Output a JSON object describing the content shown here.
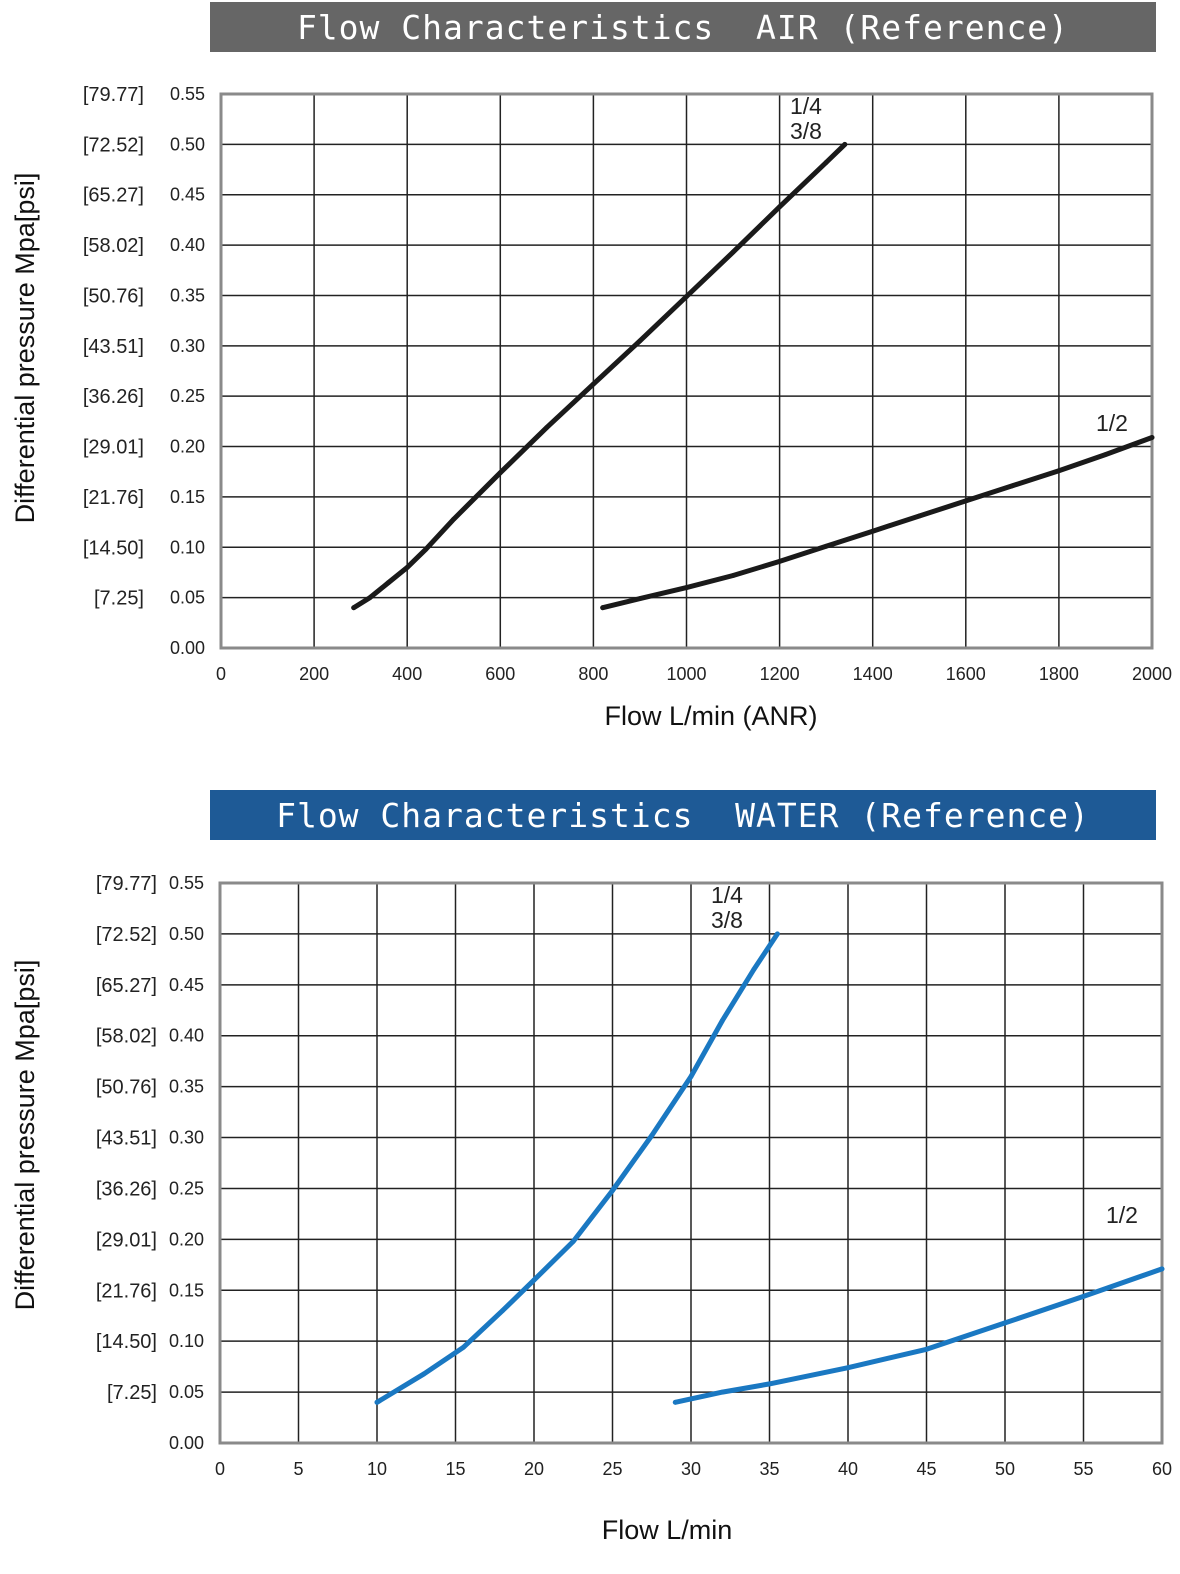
{
  "colors": {
    "air_title_bg": "#666666",
    "water_title_bg": "#1e5a96",
    "air_curve": "#1a1a1a",
    "water_curve": "#1a78c2",
    "grid": "#222222",
    "frame": "#8a8a8a"
  },
  "chart_data": [
    {
      "type": "line",
      "title": "Flow Characteristics  AIR (Reference)",
      "xlabel": "Flow L/min (ANR)",
      "ylabel": "Differential pressure Mpa[psi]",
      "xlim": [
        0,
        2000
      ],
      "ylim": [
        0,
        0.55
      ],
      "x_ticks": [
        "0",
        "200",
        "400",
        "600",
        "800",
        "1000",
        "1200",
        "1400",
        "1600",
        "1800",
        "2000"
      ],
      "y_ticks": [
        "0.00",
        "0.05",
        "0.10",
        "0.15",
        "0.20",
        "0.25",
        "0.30",
        "0.35",
        "0.40",
        "0.45",
        "0.50",
        "0.55"
      ],
      "y_ticks_psi": [
        "[7.25]",
        "[14.50]",
        "[21.76]",
        "[29.01]",
        "[36.26]",
        "[43.51]",
        "[50.76]",
        "[58.02]",
        "[65.27]",
        "[72.52]",
        "[79.77]"
      ],
      "grid": true,
      "series": [
        {
          "name": "1/4 3/8",
          "label_lines": [
            "1/4",
            "3/8"
          ],
          "x": [
            285,
            320,
            360,
            400,
            440,
            500,
            600,
            700,
            800,
            900,
            1000,
            1100,
            1200,
            1300,
            1340
          ],
          "y": [
            0.04,
            0.05,
            0.065,
            0.08,
            0.098,
            0.128,
            0.174,
            0.219,
            0.262,
            0.305,
            0.349,
            0.393,
            0.438,
            0.482,
            0.5
          ]
        },
        {
          "name": "1/2",
          "label_lines": [
            "1/2"
          ],
          "x": [
            820,
            900,
            1000,
            1100,
            1200,
            1300,
            1400,
            1500,
            1600,
            1700,
            1800,
            1900,
            2000
          ],
          "y": [
            0.04,
            0.049,
            0.06,
            0.072,
            0.086,
            0.101,
            0.116,
            0.131,
            0.146,
            0.161,
            0.176,
            0.192,
            0.209
          ]
        }
      ]
    },
    {
      "type": "line",
      "title": "Flow Characteristics  WATER (Reference)",
      "xlabel": "Flow L/min",
      "ylabel": "Differential pressure Mpa[psi]",
      "xlim": [
        0,
        60
      ],
      "ylim": [
        0,
        0.55
      ],
      "x_ticks": [
        "0",
        "5",
        "10",
        "15",
        "20",
        "25",
        "30",
        "35",
        "40",
        "45",
        "50",
        "55",
        "60"
      ],
      "y_ticks": [
        "0.00",
        "0.05",
        "0.10",
        "0.15",
        "0.20",
        "0.25",
        "0.30",
        "0.35",
        "0.40",
        "0.45",
        "0.50",
        "0.55"
      ],
      "y_ticks_psi": [
        "[7.25]",
        "[14.50]",
        "[21.76]",
        "[29.01]",
        "[36.26]",
        "[43.51]",
        "[50.76]",
        "[58.02]",
        "[65.27]",
        "[72.52]",
        "[79.77]"
      ],
      "grid": true,
      "series": [
        {
          "name": "1/4 3/8",
          "label_lines": [
            "1/4",
            "3/8"
          ],
          "x": [
            10,
            13,
            15.5,
            18,
            20,
            22.5,
            25,
            27.5,
            30,
            32,
            34,
            35.5
          ],
          "y": [
            0.04,
            0.068,
            0.094,
            0.13,
            0.16,
            0.198,
            0.248,
            0.302,
            0.36,
            0.415,
            0.465,
            0.5
          ]
        },
        {
          "name": "1/2",
          "label_lines": [
            "1/2"
          ],
          "x": [
            29,
            32,
            35,
            40,
            45,
            50,
            55,
            60
          ],
          "y": [
            0.04,
            0.05,
            0.058,
            0.074,
            0.092,
            0.118,
            0.144,
            0.171
          ]
        }
      ]
    }
  ]
}
